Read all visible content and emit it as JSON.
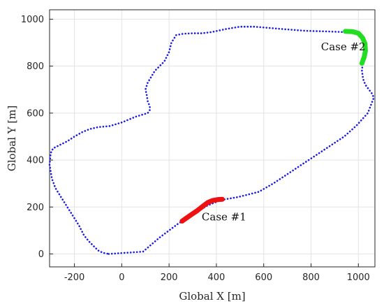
{
  "chart_data": {
    "type": "line",
    "title": "",
    "xlabel": "Global X [m]",
    "ylabel": "Global Y [m]",
    "xlim": [
      -305,
      1070
    ],
    "ylim": [
      -55,
      1040
    ],
    "xticks": [
      -200,
      0,
      200,
      400,
      600,
      800,
      1000
    ],
    "yticks": [
      0,
      200,
      400,
      600,
      800,
      1000
    ],
    "grid": true,
    "legend": "none",
    "colors": {
      "track": "#1a1ae6",
      "case1": "#ee1111",
      "case2": "#22dd22",
      "grid": "#e3e3e3",
      "axis": "#262626"
    },
    "series": [
      {
        "style": "dotted",
        "color": "#1a1ae6",
        "x": [
          -55,
          90,
          125,
          160,
          200,
          240,
          280,
          320,
          360,
          420,
          490,
          530,
          580,
          640,
          700,
          760,
          820,
          880,
          940,
          990,
          1040,
          1065,
          1060,
          1045,
          1030,
          1020,
          1015,
          1018,
          1025,
          1025,
          1015,
          1000,
          980,
          940,
          860,
          780,
          680,
          560,
          500,
          440,
          380,
          340,
          300,
          260,
          230,
          210,
          200,
          180,
          140,
          110,
          100,
          105,
          110,
          118,
          120,
          110,
          60,
          0,
          -50,
          -100,
          -135,
          -165,
          -200,
          -230,
          -260,
          -290,
          -300,
          -305,
          -300,
          -295,
          -280,
          -255,
          -230,
          -205,
          -180,
          -160,
          -140,
          -120,
          -100,
          -80,
          -55
        ],
        "y": [
          0,
          10,
          40,
          70,
          100,
          130,
          155,
          180,
          205,
          230,
          242,
          252,
          265,
          300,
          340,
          380,
          420,
          460,
          500,
          545,
          600,
          665,
          680,
          700,
          720,
          745,
          780,
          810,
          860,
          905,
          925,
          942,
          945,
          945,
          948,
          950,
          958,
          968,
          968,
          958,
          945,
          940,
          940,
          938,
          932,
          900,
          860,
          820,
          780,
          730,
          700,
          680,
          650,
          630,
          615,
          600,
          585,
          560,
          545,
          540,
          532,
          520,
          500,
          480,
          465,
          450,
          430,
          380,
          350,
          320,
          280,
          240,
          200,
          160,
          120,
          80,
          55,
          35,
          15,
          5,
          0
        ]
      },
      {
        "name": "Case #1",
        "style": "solid",
        "color": "#ee1111",
        "x": [
          255,
          290,
          320,
          345,
          365,
          385,
          410,
          425
        ],
        "y": [
          140,
          165,
          185,
          205,
          220,
          228,
          232,
          233
        ]
      },
      {
        "name": "Case #2",
        "style": "solid",
        "color": "#22dd22",
        "x": [
          945,
          975,
          1000,
          1018,
          1028,
          1030,
          1025,
          1015
        ],
        "y": [
          948,
          947,
          940,
          920,
          895,
          865,
          840,
          812
        ]
      }
    ],
    "annotations": [
      {
        "text": "Case #1",
        "x": 338,
        "y": 143
      },
      {
        "text": "Case #2",
        "x": 842,
        "y": 868
      }
    ]
  }
}
